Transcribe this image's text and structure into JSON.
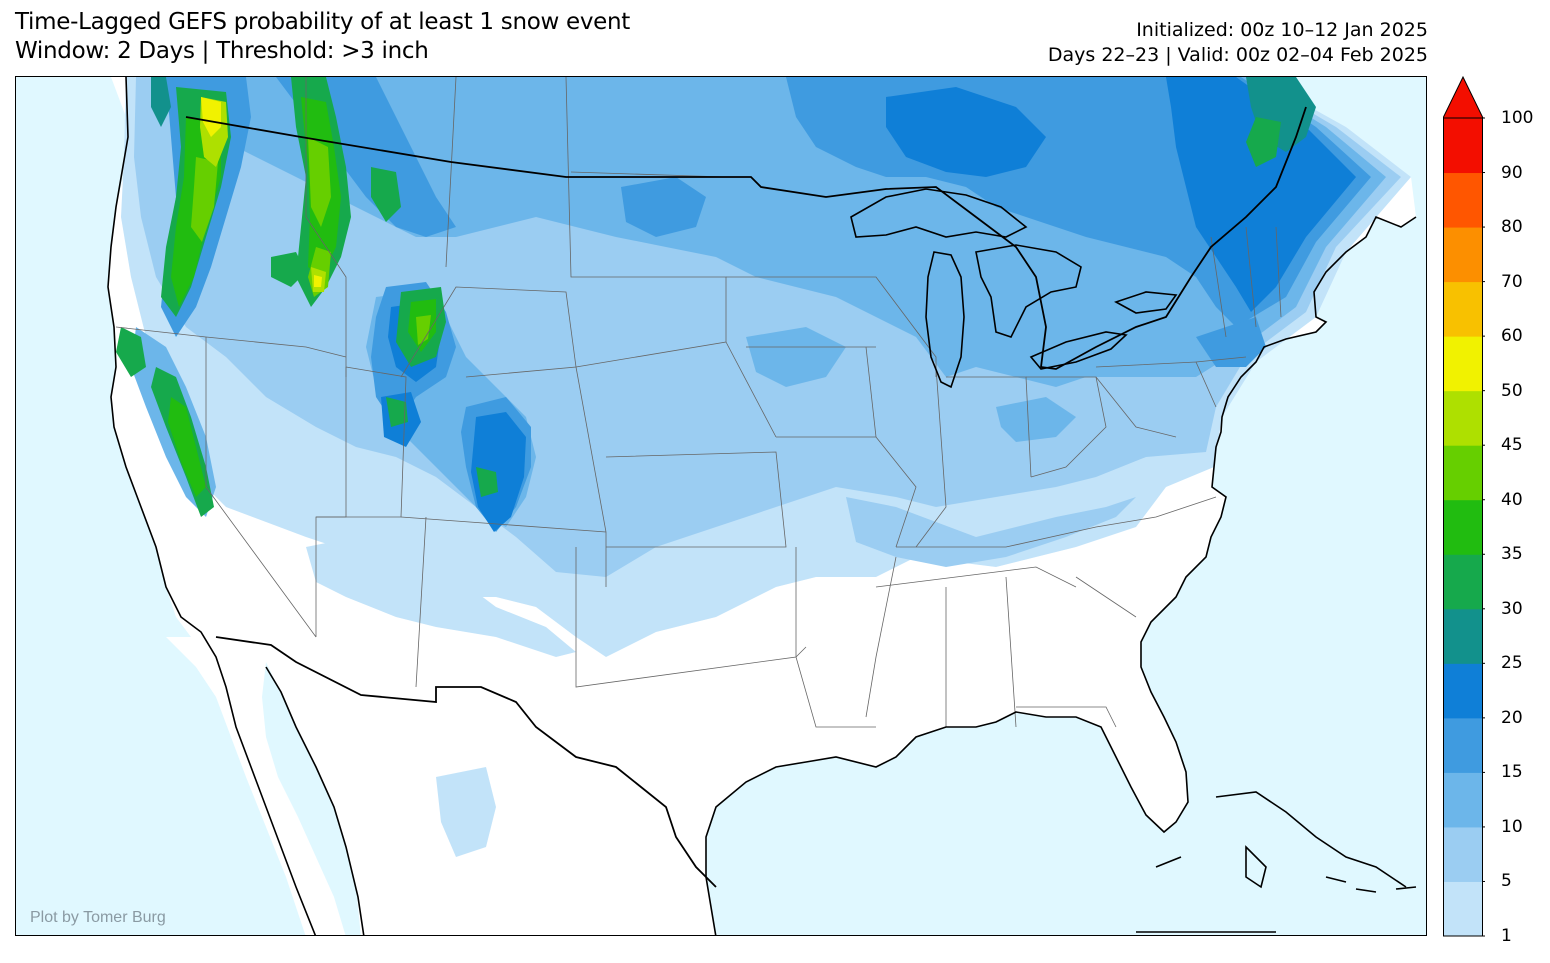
{
  "title": {
    "line1": "Time-Lagged GEFS probability of at least 1 snow event",
    "line2": "Window: 2 Days | Threshold: >3 inch"
  },
  "info": {
    "line1": "Initialized: 00z 10–12 Jan 2025",
    "line2": "Days 22–23 | Valid: 00z 02–04 Feb 2025"
  },
  "credit": "Plot by Tomer Burg",
  "colors": {
    "ocean": "#e0f8ff",
    "land": "#ffffff"
  },
  "colorbar": {
    "levels": [
      "1",
      "5",
      "10",
      "15",
      "20",
      "25",
      "30",
      "35",
      "40",
      "45",
      "50",
      "60",
      "70",
      "80",
      "90",
      "100"
    ],
    "colors": [
      "#c2e3f9",
      "#9bcdf2",
      "#6cb6ea",
      "#3f9be0",
      "#0f7fd7",
      "#12918c",
      "#16a94c",
      "#21bc10",
      "#66cf00",
      "#aee000",
      "#f1f200",
      "#f8c100",
      "#fc8f00",
      "#ff5600",
      "#f30e00"
    ],
    "extend": "max"
  }
}
